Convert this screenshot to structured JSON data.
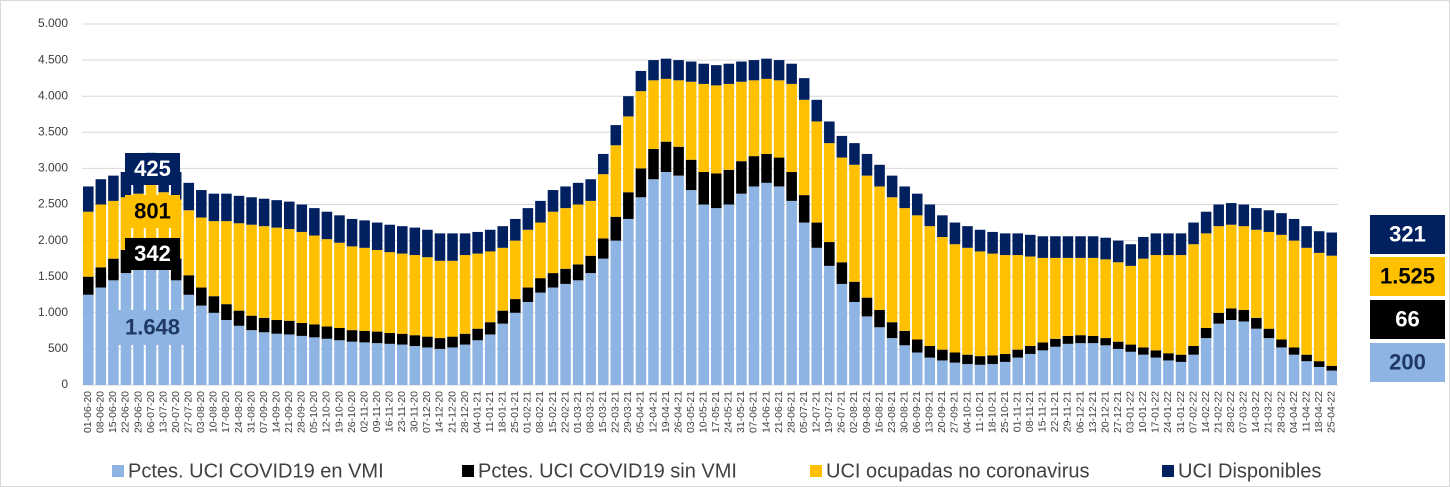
{
  "chart_data": {
    "type": "stacked-bar",
    "categories": [
      "01-06-20",
      "08-06-20",
      "15-06-20",
      "22-06-20",
      "29-06-20",
      "06-07-20",
      "13-07-20",
      "20-07-20",
      "27-07-20",
      "03-08-20",
      "10-08-20",
      "17-08-20",
      "24-08-20",
      "31-08-20",
      "07-09-20",
      "14-09-20",
      "21-09-20",
      "28-09-20",
      "05-10-20",
      "12-10-20",
      "19-10-20",
      "26-10-20",
      "02-11-20",
      "09-11-20",
      "16-11-20",
      "23-11-20",
      "30-11-20",
      "07-12-20",
      "14-12-20",
      "21-12-20",
      "28-12-20",
      "04-01-21",
      "11-01-21",
      "18-01-21",
      "25-01-21",
      "01-02-21",
      "08-02-21",
      "15-02-21",
      "22-02-21",
      "01-03-21",
      "08-03-21",
      "15-03-21",
      "22-03-21",
      "29-03-21",
      "05-04-21",
      "12-04-21",
      "19-04-21",
      "26-04-21",
      "03-05-21",
      "10-05-21",
      "17-05-21",
      "24-05-21",
      "31-05-21",
      "07-06-21",
      "14-06-21",
      "21-06-21",
      "28-06-21",
      "05-07-21",
      "12-07-21",
      "19-07-21",
      "26-07-21",
      "02-08-21",
      "09-08-21",
      "16-08-21",
      "23-08-21",
      "30-08-21",
      "06-09-21",
      "13-09-21",
      "20-09-21",
      "27-09-21",
      "04-10-21",
      "11-10-21",
      "18-10-21",
      "25-10-21",
      "01-11-21",
      "08-11-21",
      "15-11-21",
      "22-11-21",
      "29-11-21",
      "06-12-21",
      "13-12-21",
      "20-12-21",
      "27-12-21",
      "03-01-22",
      "10-01-22",
      "17-01-22",
      "24-01-22",
      "31-01-22",
      "07-02-22",
      "14-02-22",
      "21-02-22",
      "28-02-22",
      "07-03-22",
      "14-03-22",
      "21-03-22",
      "28-03-22",
      "04-04-22",
      "11-04-22",
      "18-04-22",
      "25-04-22"
    ],
    "series": [
      {
        "name": "Pctes. UCI COVID19 en VMI",
        "color": "#8db4e2",
        "values": [
          1250,
          1350,
          1450,
          1550,
          1620,
          1648,
          1600,
          1450,
          1250,
          1100,
          1000,
          900,
          820,
          760,
          730,
          710,
          700,
          680,
          660,
          640,
          620,
          600,
          590,
          580,
          570,
          560,
          540,
          520,
          500,
          520,
          560,
          620,
          700,
          850,
          1000,
          1150,
          1280,
          1350,
          1400,
          1450,
          1550,
          1750,
          2000,
          2300,
          2600,
          2850,
          2950,
          2900,
          2700,
          2500,
          2450,
          2500,
          2650,
          2750,
          2800,
          2750,
          2550,
          2250,
          1900,
          1650,
          1400,
          1150,
          950,
          800,
          650,
          550,
          450,
          380,
          340,
          310,
          290,
          280,
          290,
          320,
          380,
          430,
          480,
          530,
          570,
          580,
          580,
          550,
          500,
          460,
          420,
          380,
          340,
          320,
          420,
          650,
          850,
          900,
          880,
          780,
          650,
          520,
          420,
          330,
          250,
          200
        ],
        "value_labels": [
          null,
          null,
          null,
          null,
          null,
          "1.648",
          null,
          null,
          null,
          null,
          null,
          null,
          null,
          null,
          null,
          null,
          null,
          null,
          null,
          null,
          null,
          null,
          null,
          null,
          null,
          null,
          null,
          null,
          null,
          null,
          null,
          null,
          null,
          null,
          null,
          null,
          null,
          null,
          null,
          null,
          null,
          null,
          null,
          null,
          null,
          null,
          null,
          null,
          null,
          null,
          null,
          null,
          null,
          null,
          null,
          null,
          null,
          null,
          null,
          null,
          null,
          null,
          null,
          null,
          null,
          null,
          null,
          null,
          null,
          null,
          null,
          null,
          null,
          null,
          null,
          null,
          null,
          null,
          null,
          null,
          null,
          null,
          null,
          null,
          null,
          null,
          null,
          null,
          null,
          null,
          null,
          null,
          null,
          null,
          null,
          null,
          null,
          null,
          null,
          "200"
        ]
      },
      {
        "name": "Pctes. UCI COVID19 sin VMI",
        "color": "#000000",
        "values": [
          250,
          280,
          300,
          320,
          335,
          342,
          330,
          300,
          270,
          250,
          230,
          220,
          210,
          200,
          200,
          190,
          190,
          180,
          180,
          170,
          170,
          160,
          160,
          160,
          150,
          150,
          150,
          150,
          150,
          150,
          150,
          160,
          170,
          180,
          190,
          200,
          200,
          200,
          210,
          220,
          240,
          280,
          330,
          370,
          400,
          420,
          420,
          400,
          420,
          450,
          480,
          480,
          450,
          420,
          400,
          400,
          400,
          380,
          350,
          330,
          300,
          280,
          260,
          240,
          220,
          200,
          180,
          160,
          150,
          140,
          130,
          120,
          120,
          110,
          110,
          110,
          110,
          110,
          110,
          110,
          100,
          100,
          100,
          100,
          100,
          100,
          100,
          100,
          120,
          140,
          150,
          160,
          160,
          150,
          130,
          110,
          100,
          90,
          80,
          66
        ],
        "value_labels": [
          null,
          null,
          null,
          null,
          null,
          "342",
          null,
          null,
          null,
          null,
          null,
          null,
          null,
          null,
          null,
          null,
          null,
          null,
          null,
          null,
          null,
          null,
          null,
          null,
          null,
          null,
          null,
          null,
          null,
          null,
          null,
          null,
          null,
          null,
          null,
          null,
          null,
          null,
          null,
          null,
          null,
          null,
          null,
          null,
          null,
          null,
          null,
          null,
          null,
          null,
          null,
          null,
          null,
          null,
          null,
          null,
          null,
          null,
          null,
          null,
          null,
          null,
          null,
          null,
          null,
          null,
          null,
          null,
          null,
          null,
          null,
          null,
          null,
          null,
          null,
          null,
          null,
          null,
          null,
          null,
          null,
          null,
          null,
          null,
          null,
          null,
          null,
          null,
          null,
          null,
          null,
          null,
          null,
          null,
          null,
          null,
          null,
          null,
          null,
          "66"
        ]
      },
      {
        "name": "UCI ocupadas no coronavirus",
        "color": "#ffc000",
        "values": [
          900,
          870,
          800,
          730,
          695,
          801,
          740,
          820,
          900,
          970,
          1040,
          1150,
          1210,
          1260,
          1270,
          1280,
          1270,
          1260,
          1230,
          1210,
          1180,
          1160,
          1150,
          1130,
          1120,
          1110,
          1110,
          1100,
          1070,
          1050,
          1090,
          1040,
          980,
          870,
          810,
          800,
          770,
          850,
          840,
          830,
          760,
          890,
          990,
          1050,
          1070,
          950,
          870,
          920,
          1080,
          1220,
          1220,
          1190,
          1100,
          1050,
          1040,
          1070,
          1220,
          1320,
          1400,
          1370,
          1450,
          1620,
          1690,
          1710,
          1730,
          1700,
          1720,
          1660,
          1560,
          1500,
          1480,
          1450,
          1410,
          1370,
          1310,
          1240,
          1170,
          1120,
          1080,
          1070,
          1080,
          1090,
          1100,
          1090,
          1230,
          1320,
          1360,
          1380,
          1410,
          1310,
          1200,
          1160,
          1160,
          1220,
          1340,
          1450,
          1480,
          1480,
          1500,
          1525
        ],
        "value_labels": [
          null,
          null,
          null,
          null,
          null,
          "801",
          null,
          null,
          null,
          null,
          null,
          null,
          null,
          null,
          null,
          null,
          null,
          null,
          null,
          null,
          null,
          null,
          null,
          null,
          null,
          null,
          null,
          null,
          null,
          null,
          null,
          null,
          null,
          null,
          null,
          null,
          null,
          null,
          null,
          null,
          null,
          null,
          null,
          null,
          null,
          null,
          null,
          null,
          null,
          null,
          null,
          null,
          null,
          null,
          null,
          null,
          null,
          null,
          null,
          null,
          null,
          null,
          null,
          null,
          null,
          null,
          null,
          null,
          null,
          null,
          null,
          null,
          null,
          null,
          null,
          null,
          null,
          null,
          null,
          null,
          null,
          null,
          null,
          null,
          null,
          null,
          null,
          null,
          null,
          null,
          null,
          null,
          null,
          null,
          null,
          null,
          null,
          null,
          null,
          "1.525"
        ]
      },
      {
        "name": "UCI Disponibles",
        "color": "#002060",
        "values": [
          350,
          350,
          350,
          350,
          350,
          425,
          380,
          380,
          380,
          380,
          380,
          380,
          380,
          380,
          380,
          380,
          380,
          380,
          380,
          380,
          380,
          380,
          380,
          380,
          380,
          380,
          380,
          380,
          380,
          380,
          300,
          300,
          300,
          300,
          300,
          300,
          300,
          300,
          300,
          300,
          300,
          280,
          280,
          280,
          280,
          280,
          280,
          280,
          280,
          280,
          280,
          280,
          280,
          280,
          280,
          280,
          280,
          300,
          300,
          300,
          300,
          300,
          300,
          300,
          300,
          300,
          300,
          300,
          300,
          300,
          300,
          300,
          300,
          300,
          300,
          300,
          300,
          300,
          300,
          300,
          300,
          300,
          300,
          300,
          300,
          300,
          300,
          300,
          300,
          300,
          300,
          300,
          300,
          300,
          300,
          300,
          300,
          300,
          300,
          321
        ],
        "value_labels": [
          null,
          null,
          null,
          null,
          null,
          "425",
          null,
          null,
          null,
          null,
          null,
          null,
          null,
          null,
          null,
          null,
          null,
          null,
          null,
          null,
          null,
          null,
          null,
          null,
          null,
          null,
          null,
          null,
          null,
          null,
          null,
          null,
          null,
          null,
          null,
          null,
          null,
          null,
          null,
          null,
          null,
          null,
          null,
          null,
          null,
          null,
          null,
          null,
          null,
          null,
          null,
          null,
          null,
          null,
          null,
          null,
          null,
          null,
          null,
          null,
          null,
          null,
          null,
          null,
          null,
          null,
          null,
          null,
          null,
          null,
          null,
          null,
          null,
          null,
          null,
          null,
          null,
          null,
          null,
          null,
          null,
          null,
          null,
          null,
          null,
          null,
          null,
          null,
          null,
          null,
          null,
          null,
          null,
          null,
          null,
          null,
          null,
          null,
          null,
          "321"
        ]
      }
    ],
    "ylim": [
      0,
      5000
    ],
    "yticks": [
      0,
      500,
      {
        "value": 1000,
        "label": "1.000"
      },
      {
        "value": 1500,
        "label": "1.500"
      },
      {
        "value": 2000,
        "label": "2.000"
      },
      {
        "value": 2500,
        "label": "2.500"
      },
      {
        "value": 3000,
        "label": "3.000"
      },
      {
        "value": 3500,
        "label": "3.500"
      },
      {
        "value": 4000,
        "label": "4.000"
      },
      {
        "value": 4500,
        "label": "4.500"
      },
      {
        "value": 5000,
        "label": "5.000"
      }
    ],
    "grid": true,
    "legend": "bottom"
  }
}
